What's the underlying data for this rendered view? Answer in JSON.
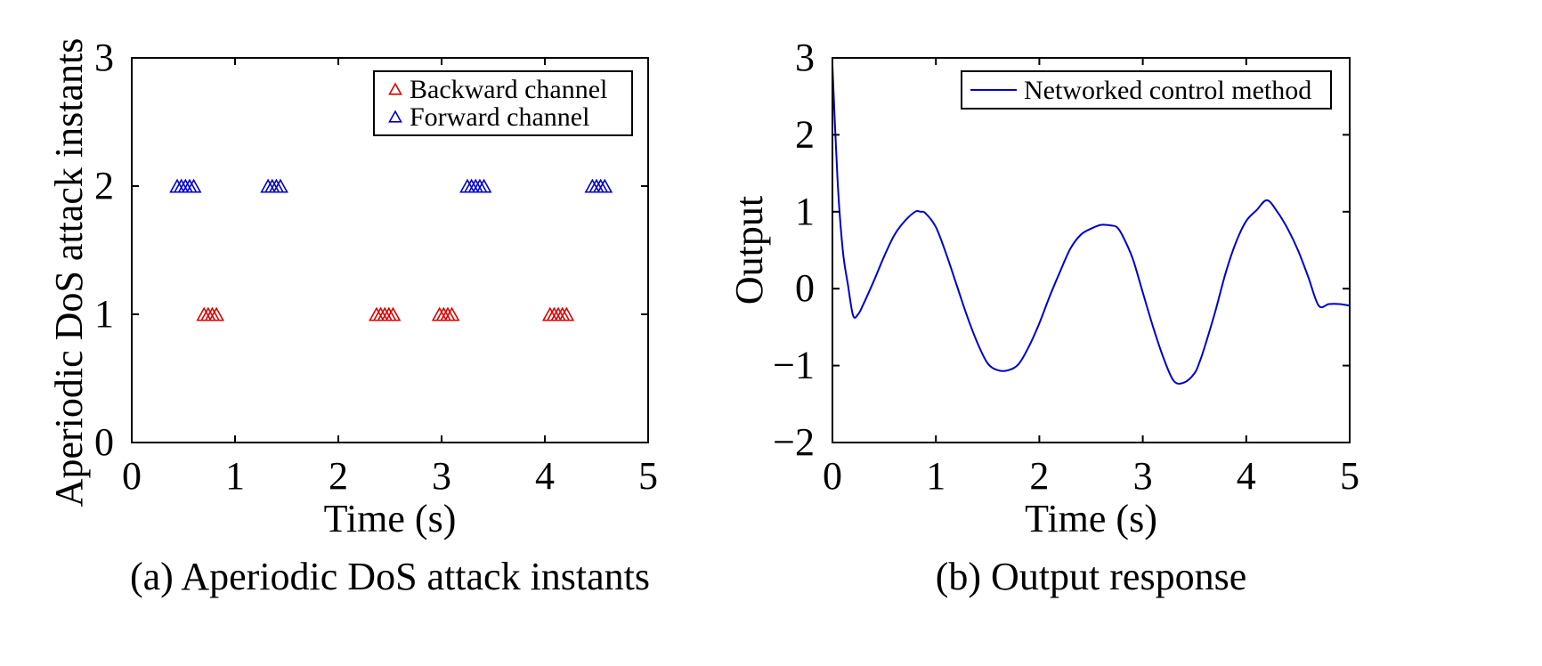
{
  "colors": {
    "backward": "#e00000",
    "forward": "#0000cc",
    "line": "#0000cc",
    "axis": "#000000"
  },
  "chart_data": [
    {
      "type": "scatter",
      "caption": "(a) Aperiodic DoS attack instants",
      "xlabel": "Time (s)",
      "ylabel": "Aperiodic DoS attack instants",
      "xlim": [
        0,
        5
      ],
      "ylim": [
        0,
        3
      ],
      "xticks": [
        "0",
        "1",
        "2",
        "3",
        "4",
        "5"
      ],
      "yticks": [
        "0",
        "1",
        "2",
        "3"
      ],
      "grid": false,
      "legend_position": "top-right",
      "marker": "triangle-open",
      "series": [
        {
          "name": "Backward channel",
          "color_key": "backward",
          "points": [
            {
              "x": 0.7,
              "y": 1
            },
            {
              "x": 0.74,
              "y": 1
            },
            {
              "x": 0.78,
              "y": 1
            },
            {
              "x": 0.82,
              "y": 1
            },
            {
              "x": 2.37,
              "y": 1
            },
            {
              "x": 2.41,
              "y": 1
            },
            {
              "x": 2.45,
              "y": 1
            },
            {
              "x": 2.49,
              "y": 1
            },
            {
              "x": 2.53,
              "y": 1
            },
            {
              "x": 2.98,
              "y": 1
            },
            {
              "x": 3.02,
              "y": 1
            },
            {
              "x": 3.06,
              "y": 1
            },
            {
              "x": 3.1,
              "y": 1
            },
            {
              "x": 4.05,
              "y": 1
            },
            {
              "x": 4.09,
              "y": 1
            },
            {
              "x": 4.13,
              "y": 1
            },
            {
              "x": 4.17,
              "y": 1
            },
            {
              "x": 4.21,
              "y": 1
            }
          ]
        },
        {
          "name": "Forward channel",
          "color_key": "forward",
          "points": [
            {
              "x": 0.44,
              "y": 2
            },
            {
              "x": 0.48,
              "y": 2
            },
            {
              "x": 0.52,
              "y": 2
            },
            {
              "x": 0.56,
              "y": 2
            },
            {
              "x": 0.6,
              "y": 2
            },
            {
              "x": 1.32,
              "y": 2
            },
            {
              "x": 1.36,
              "y": 2
            },
            {
              "x": 1.4,
              "y": 2
            },
            {
              "x": 1.44,
              "y": 2
            },
            {
              "x": 3.25,
              "y": 2
            },
            {
              "x": 3.29,
              "y": 2
            },
            {
              "x": 3.33,
              "y": 2
            },
            {
              "x": 3.37,
              "y": 2
            },
            {
              "x": 3.41,
              "y": 2
            },
            {
              "x": 4.46,
              "y": 2
            },
            {
              "x": 4.5,
              "y": 2
            },
            {
              "x": 4.54,
              "y": 2
            },
            {
              "x": 4.58,
              "y": 2
            }
          ]
        }
      ]
    },
    {
      "type": "line",
      "caption": "(b) Output response",
      "xlabel": "Time (s)",
      "ylabel": "Output",
      "xlim": [
        0,
        5
      ],
      "ylim": [
        -2,
        3
      ],
      "xticks": [
        "0",
        "1",
        "2",
        "3",
        "4",
        "5"
      ],
      "yticks": [
        "−2",
        "−1",
        "0",
        "1",
        "2",
        "3"
      ],
      "grid": false,
      "legend_position": "top-right",
      "series": [
        {
          "name": "Networked control method",
          "color_key": "line",
          "x": [
            0,
            0.05,
            0.1,
            0.15,
            0.2,
            0.25,
            0.3,
            0.4,
            0.5,
            0.6,
            0.7,
            0.8,
            0.85,
            0.9,
            1.0,
            1.1,
            1.2,
            1.3,
            1.4,
            1.5,
            1.6,
            1.7,
            1.8,
            1.9,
            2.0,
            2.1,
            2.2,
            2.3,
            2.4,
            2.5,
            2.6,
            2.7,
            2.75,
            2.8,
            2.9,
            3.0,
            3.1,
            3.2,
            3.3,
            3.4,
            3.5,
            3.55,
            3.6,
            3.7,
            3.8,
            3.9,
            4.0,
            4.1,
            4.2,
            4.3,
            4.4,
            4.5,
            4.6,
            4.7,
            4.8,
            4.9,
            5.0
          ],
          "y": [
            2.9,
            1.4,
            0.5,
            0.05,
            -0.35,
            -0.33,
            -0.2,
            0.1,
            0.42,
            0.7,
            0.88,
            1.0,
            1.0,
            0.98,
            0.8,
            0.45,
            0.05,
            -0.35,
            -0.7,
            -0.97,
            -1.06,
            -1.06,
            -0.98,
            -0.75,
            -0.45,
            -0.1,
            0.22,
            0.52,
            0.7,
            0.78,
            0.83,
            0.82,
            0.8,
            0.7,
            0.4,
            -0.05,
            -0.5,
            -0.9,
            -1.2,
            -1.22,
            -1.1,
            -0.95,
            -0.75,
            -0.3,
            0.2,
            0.6,
            0.88,
            1.02,
            1.15,
            1.0,
            0.78,
            0.5,
            0.15,
            -0.22,
            -0.2,
            -0.2,
            -0.22
          ]
        }
      ]
    }
  ]
}
